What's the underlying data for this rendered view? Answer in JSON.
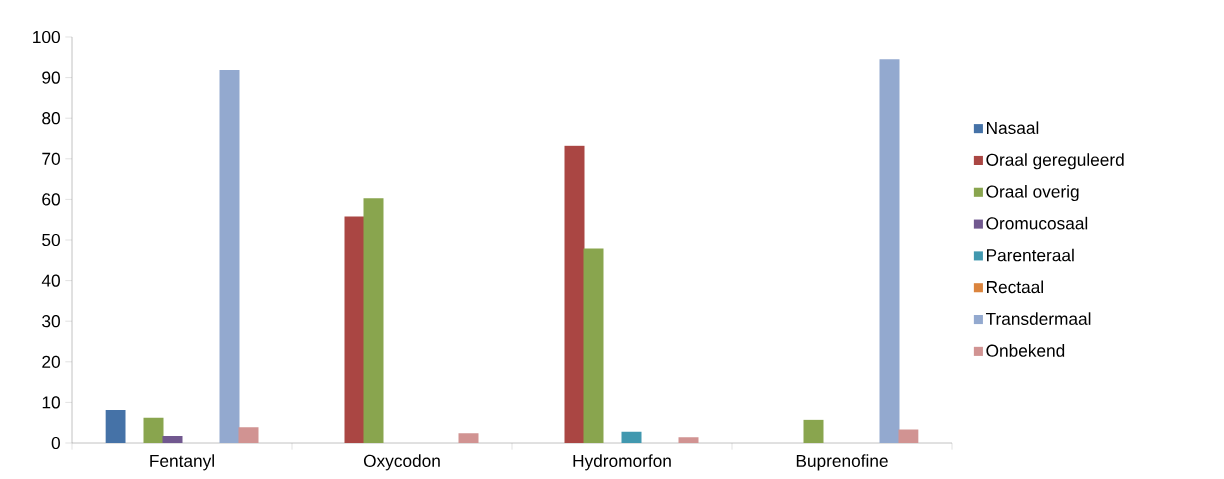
{
  "chart_data": {
    "type": "bar",
    "categories": [
      "Fentanyl",
      "Oxycodon",
      "Hydromorfon",
      "Buprenofine"
    ],
    "series": [
      {
        "name": "Nasaal",
        "color": "#4572a7",
        "values": [
          8.1,
          0,
          0,
          0
        ]
      },
      {
        "name": "Oraal gereguleerd",
        "color": "#aa4643",
        "values": [
          0,
          55.8,
          73.2,
          0
        ]
      },
      {
        "name": "Oraal overig",
        "color": "#89a54e",
        "values": [
          6.2,
          60.3,
          47.9,
          5.7
        ]
      },
      {
        "name": "Oromucosaal",
        "color": "#71588f",
        "values": [
          1.7,
          0,
          0,
          0
        ]
      },
      {
        "name": "Parenteraal",
        "color": "#4198af",
        "values": [
          0,
          0,
          2.8,
          0
        ]
      },
      {
        "name": "Rectaal",
        "color": "#db843d",
        "values": [
          0,
          0,
          0,
          0
        ]
      },
      {
        "name": "Transdermaal",
        "color": "#93a9cf",
        "values": [
          91.9,
          0,
          0,
          94.5
        ]
      },
      {
        "name": "Onbekend",
        "color": "#d19392",
        "values": [
          3.9,
          2.4,
          1.4,
          3.3
        ]
      }
    ],
    "ylim": [
      0,
      100
    ],
    "yticks": [
      0,
      10,
      20,
      30,
      40,
      50,
      60,
      70,
      80,
      90,
      100
    ],
    "grid": false,
    "legend": "right"
  }
}
